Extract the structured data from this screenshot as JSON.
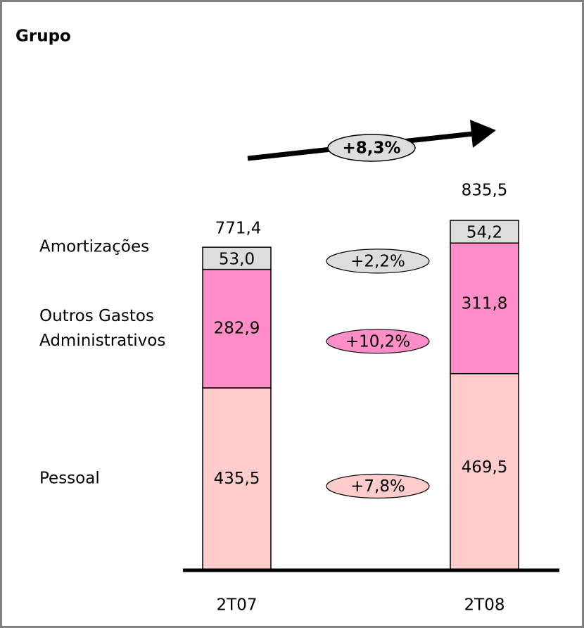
{
  "chart_data": {
    "type": "bar",
    "stacked": true,
    "title": "Grupo",
    "categories": [
      "2T07",
      "2T08"
    ],
    "series": [
      {
        "name": "Pessoal",
        "color": "#ffcccc",
        "values": [
          435.5,
          469.5
        ],
        "value_labels": [
          "435,5",
          "469,5"
        ],
        "change_label": "+7,8%"
      },
      {
        "name": "Outros Gastos Administrativos",
        "color": "#ff8ec8",
        "values": [
          282.9,
          311.8
        ],
        "value_labels": [
          "282,9",
          "311,8"
        ],
        "change_label": "+10,2%"
      },
      {
        "name": "Amortizações",
        "color": "#dddddd",
        "values": [
          53.0,
          54.2
        ],
        "value_labels": [
          "53,0",
          "54,2"
        ],
        "change_label": "+2,2%"
      }
    ],
    "totals": [
      771.4,
      835.5
    ],
    "total_labels": [
      "771,4",
      "835,5"
    ],
    "total_change_label": "+8,3%"
  }
}
